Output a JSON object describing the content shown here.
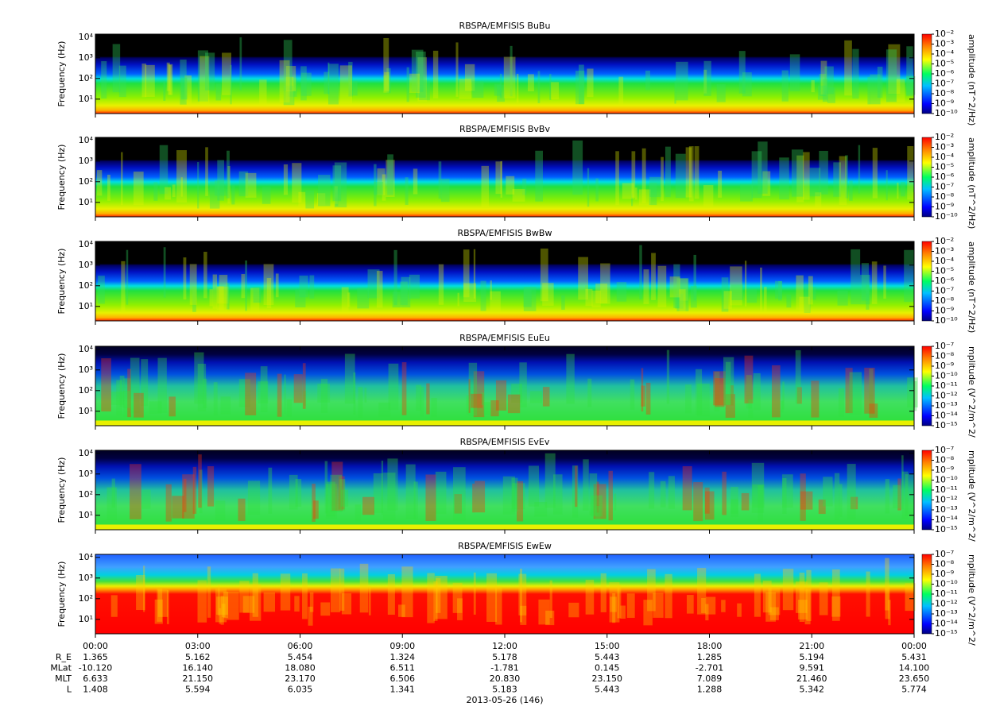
{
  "chart_data": [
    {
      "type": "spectrogram",
      "title": "RBSPA/EMFISIS  BuBu",
      "y_label": "Frequency (Hz)",
      "log_y": true,
      "ylim": [
        2,
        14000
      ],
      "yticks": [
        {
          "value": 10,
          "label": "10¹"
        },
        {
          "value": 100,
          "label": "10²"
        },
        {
          "value": 1000,
          "label": "10³"
        },
        {
          "value": 10000,
          "label": "10⁴"
        }
      ],
      "colorbar": {
        "label": "amplitude (nT^2/Hz)",
        "clim": [
          1e-10,
          0.01
        ],
        "ticks": [
          {
            "value": 0.01,
            "label": "10⁻²"
          },
          {
            "value": 0.001,
            "label": "10⁻³"
          },
          {
            "value": 0.0001,
            "label": "10⁻⁴"
          },
          {
            "value": 1e-05,
            "label": "10⁻⁵"
          },
          {
            "value": 1e-06,
            "label": "10⁻⁶"
          },
          {
            "value": 1e-07,
            "label": "10⁻⁷"
          },
          {
            "value": 1e-08,
            "label": "10⁻⁸"
          },
          {
            "value": 1e-09,
            "label": "10⁻⁹"
          },
          {
            "value": 1e-10,
            "label": "10⁻¹⁰"
          }
        ]
      }
    },
    {
      "type": "spectrogram",
      "title": "RBSPA/EMFISIS  BvBv",
      "y_label": "Frequency (Hz)",
      "log_y": true,
      "ylim": [
        2,
        14000
      ],
      "yticks": [
        {
          "value": 10,
          "label": "10¹"
        },
        {
          "value": 100,
          "label": "10²"
        },
        {
          "value": 1000,
          "label": "10³"
        },
        {
          "value": 10000,
          "label": "10⁴"
        }
      ],
      "colorbar": {
        "label": "amplitude (nT^2/Hz)",
        "clim": [
          1e-10,
          0.01
        ],
        "ticks": [
          {
            "value": 0.01,
            "label": "10⁻²"
          },
          {
            "value": 0.001,
            "label": "10⁻³"
          },
          {
            "value": 0.0001,
            "label": "10⁻⁴"
          },
          {
            "value": 1e-05,
            "label": "10⁻⁵"
          },
          {
            "value": 1e-06,
            "label": "10⁻⁶"
          },
          {
            "value": 1e-07,
            "label": "10⁻⁷"
          },
          {
            "value": 1e-08,
            "label": "10⁻⁸"
          },
          {
            "value": 1e-09,
            "label": "10⁻⁹"
          },
          {
            "value": 1e-10,
            "label": "10⁻¹⁰"
          }
        ]
      }
    },
    {
      "type": "spectrogram",
      "title": "RBSPA/EMFISIS  BwBw",
      "y_label": "Frequency (Hz)",
      "log_y": true,
      "ylim": [
        2,
        14000
      ],
      "yticks": [
        {
          "value": 10,
          "label": "10¹"
        },
        {
          "value": 100,
          "label": "10²"
        },
        {
          "value": 1000,
          "label": "10³"
        },
        {
          "value": 10000,
          "label": "10⁴"
        }
      ],
      "colorbar": {
        "label": "amplitude (nT^2/Hz)",
        "clim": [
          1e-10,
          0.01
        ],
        "ticks": [
          {
            "value": 0.01,
            "label": "10⁻²"
          },
          {
            "value": 0.001,
            "label": "10⁻³"
          },
          {
            "value": 0.0001,
            "label": "10⁻⁴"
          },
          {
            "value": 1e-05,
            "label": "10⁻⁵"
          },
          {
            "value": 1e-06,
            "label": "10⁻⁶"
          },
          {
            "value": 1e-07,
            "label": "10⁻⁷"
          },
          {
            "value": 1e-08,
            "label": "10⁻⁸"
          },
          {
            "value": 1e-09,
            "label": "10⁻⁹"
          },
          {
            "value": 1e-10,
            "label": "10⁻¹⁰"
          }
        ]
      }
    },
    {
      "type": "spectrogram",
      "title": "RBSPA/EMFISIS  EuEu",
      "y_label": "Frequency (Hz)",
      "log_y": true,
      "ylim": [
        2,
        14000
      ],
      "yticks": [
        {
          "value": 10,
          "label": "10¹"
        },
        {
          "value": 100,
          "label": "10²"
        },
        {
          "value": 1000,
          "label": "10³"
        },
        {
          "value": 10000,
          "label": "10⁴"
        }
      ],
      "colorbar": {
        "label": "mplitude (V^2/m^2/",
        "clim": [
          1e-15,
          1e-07
        ],
        "ticks": [
          {
            "value": 1e-07,
            "label": "10⁻⁷"
          },
          {
            "value": 1e-08,
            "label": "10⁻⁸"
          },
          {
            "value": 1e-09,
            "label": "10⁻⁹"
          },
          {
            "value": 1e-10,
            "label": "10⁻¹⁰"
          },
          {
            "value": 1e-11,
            "label": "10⁻¹¹"
          },
          {
            "value": 1e-12,
            "label": "10⁻¹²"
          },
          {
            "value": 1e-13,
            "label": "10⁻¹³"
          },
          {
            "value": 1e-14,
            "label": "10⁻¹⁴"
          },
          {
            "value": 1e-15,
            "label": "10⁻¹⁵"
          }
        ]
      }
    },
    {
      "type": "spectrogram",
      "title": "RBSPA/EMFISIS  EvEv",
      "y_label": "Frequency (Hz)",
      "log_y": true,
      "ylim": [
        2,
        14000
      ],
      "yticks": [
        {
          "value": 10,
          "label": "10¹"
        },
        {
          "value": 100,
          "label": "10²"
        },
        {
          "value": 1000,
          "label": "10³"
        },
        {
          "value": 10000,
          "label": "10⁴"
        }
      ],
      "colorbar": {
        "label": "mplitude (V^2/m^2/",
        "clim": [
          1e-15,
          1e-07
        ],
        "ticks": [
          {
            "value": 1e-07,
            "label": "10⁻⁷"
          },
          {
            "value": 1e-08,
            "label": "10⁻⁸"
          },
          {
            "value": 1e-09,
            "label": "10⁻⁹"
          },
          {
            "value": 1e-10,
            "label": "10⁻¹⁰"
          },
          {
            "value": 1e-11,
            "label": "10⁻¹¹"
          },
          {
            "value": 1e-12,
            "label": "10⁻¹²"
          },
          {
            "value": 1e-13,
            "label": "10⁻¹³"
          },
          {
            "value": 1e-14,
            "label": "10⁻¹⁴"
          },
          {
            "value": 1e-15,
            "label": "10⁻¹⁵"
          }
        ]
      }
    },
    {
      "type": "spectrogram",
      "title": "RBSPA/EMFISIS  EwEw",
      "y_label": "Frequency (Hz)",
      "log_y": true,
      "ylim": [
        2,
        14000
      ],
      "yticks": [
        {
          "value": 10,
          "label": "10¹"
        },
        {
          "value": 100,
          "label": "10²"
        },
        {
          "value": 1000,
          "label": "10³"
        },
        {
          "value": 10000,
          "label": "10⁴"
        }
      ],
      "colorbar": {
        "label": "mplitude (V^2/m^2/",
        "clim": [
          1e-15,
          1e-07
        ],
        "ticks": [
          {
            "value": 1e-07,
            "label": "10⁻⁷"
          },
          {
            "value": 1e-08,
            "label": "10⁻⁸"
          },
          {
            "value": 1e-09,
            "label": "10⁻⁹"
          },
          {
            "value": 1e-10,
            "label": "10⁻¹⁰"
          },
          {
            "value": 1e-11,
            "label": "10⁻¹¹"
          },
          {
            "value": 1e-12,
            "label": "10⁻¹²"
          },
          {
            "value": 1e-13,
            "label": "10⁻¹³"
          },
          {
            "value": 1e-14,
            "label": "10⁻¹⁴"
          },
          {
            "value": 1e-15,
            "label": "10⁻¹⁵"
          }
        ]
      }
    }
  ],
  "time_axis": {
    "xlim": [
      0,
      24
    ],
    "xticks": [
      {
        "value": 0,
        "label": "00:00"
      },
      {
        "value": 3,
        "label": "03:00"
      },
      {
        "value": 6,
        "label": "06:00"
      },
      {
        "value": 9,
        "label": "09:00"
      },
      {
        "value": 12,
        "label": "12:00"
      },
      {
        "value": 15,
        "label": "15:00"
      },
      {
        "value": 18,
        "label": "18:00"
      },
      {
        "value": 21,
        "label": "21:00"
      },
      {
        "value": 24,
        "label": "00:00"
      }
    ],
    "rows": [
      {
        "label": "R_E",
        "values": [
          "1.365",
          "5.162",
          "5.454",
          "1.324",
          "5.178",
          "5.443",
          "1.285",
          "5.194",
          "5.431"
        ]
      },
      {
        "label": "MLat",
        "values": [
          "-10.120",
          "16.140",
          "18.080",
          "6.511",
          "-1.781",
          "0.145",
          "-2.701",
          "9.591",
          "14.100"
        ]
      },
      {
        "label": "MLT",
        "values": [
          "6.633",
          "21.150",
          "23.170",
          "6.506",
          "20.830",
          "23.150",
          "7.089",
          "21.460",
          "23.650"
        ]
      },
      {
        "label": "L",
        "values": [
          "1.408",
          "5.594",
          "6.035",
          "1.341",
          "5.183",
          "5.443",
          "1.288",
          "5.342",
          "5.774"
        ]
      }
    ],
    "date": "2013-05-26 (146)"
  }
}
